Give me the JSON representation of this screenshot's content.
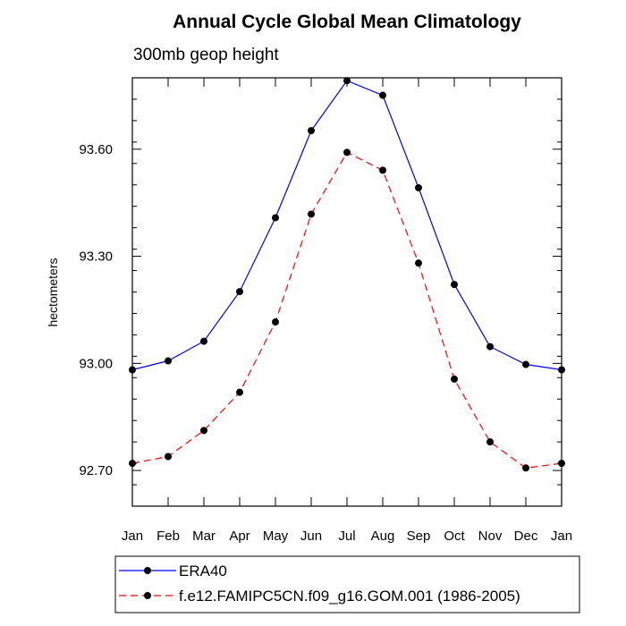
{
  "chart_data": {
    "type": "line",
    "title": "Annual Cycle Global Mean Climatology",
    "subtitle": "300mb geop height",
    "ylabel": "hectometers",
    "xlabel": "",
    "categories": [
      "Jan",
      "Feb",
      "Mar",
      "Apr",
      "May",
      "Jun",
      "Jul",
      "Aug",
      "Sep",
      "Oct",
      "Nov",
      "Dec",
      "Jan"
    ],
    "ylim": [
      92.6,
      93.8
    ],
    "yticks": [
      "92.70",
      "93.00",
      "93.30",
      "93.60"
    ],
    "grid": false,
    "legend_position": "bottom-center",
    "series": [
      {
        "name": "ERA40",
        "color": "#0000ff",
        "line_style": "solid",
        "values": [
          92.982,
          93.007,
          93.062,
          93.201,
          93.408,
          93.652,
          93.792,
          93.751,
          93.492,
          93.221,
          93.047,
          92.997,
          92.982
        ]
      },
      {
        "name": "f.e12.FAMIPC5CN.f09_g16.GOM.001 (1986-2005)",
        "color": "#ff0000",
        "line_style": "dashed",
        "values": [
          92.72,
          92.739,
          92.812,
          92.919,
          93.116,
          93.418,
          93.591,
          93.541,
          93.281,
          92.956,
          92.78,
          92.707,
          92.72
        ]
      }
    ]
  }
}
